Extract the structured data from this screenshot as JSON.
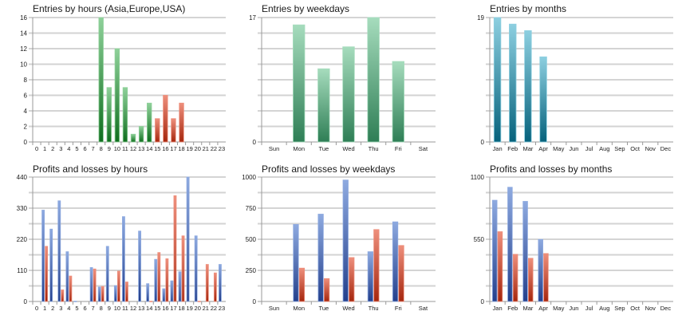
{
  "chart_data": [
    {
      "id": "entries-hours",
      "type": "bar",
      "title": "Entries by hours (Asia,Europe,USA)",
      "xlabel": "",
      "ylabel": "",
      "categories": [
        "0",
        "1",
        "2",
        "3",
        "4",
        "5",
        "6",
        "7",
        "8",
        "9",
        "10",
        "11",
        "12",
        "13",
        "14",
        "15",
        "16",
        "17",
        "18",
        "19",
        "20",
        "21",
        "22",
        "23"
      ],
      "series": [
        {
          "name": "Entries",
          "values": [
            0,
            0,
            0,
            0,
            0,
            0,
            0,
            0,
            16,
            7,
            12,
            7,
            1,
            2,
            5,
            3,
            6,
            3,
            5,
            0,
            0,
            0,
            0,
            0
          ],
          "bar_colors": [
            "green",
            "green",
            "green",
            "green",
            "green",
            "green",
            "green",
            "green",
            "green",
            "green",
            "green",
            "green",
            "green",
            "green",
            "green",
            "red",
            "red",
            "red",
            "red",
            "red",
            "red",
            "red",
            "red",
            "red"
          ]
        }
      ],
      "ylim": [
        0,
        16
      ],
      "yticks": [
        0,
        2,
        4,
        6,
        8,
        10,
        12,
        14,
        16
      ],
      "minor_grid": false,
      "grid": true
    },
    {
      "id": "entries-weekdays",
      "type": "bar",
      "title": "Entries by weekdays",
      "xlabel": "",
      "ylabel": "",
      "categories": [
        "Sun",
        "Mon",
        "Tue",
        "Wed",
        "Thu",
        "Fri",
        "Sat"
      ],
      "series": [
        {
          "name": "Entries",
          "values": [
            0,
            16,
            10,
            13,
            17,
            11,
            0
          ],
          "color": "teal-green"
        }
      ],
      "ylim": [
        0,
        17
      ],
      "yticks": [
        0,
        17
      ],
      "grid": true
    },
    {
      "id": "entries-months",
      "type": "bar",
      "title": "Entries by months",
      "xlabel": "",
      "ylabel": "",
      "categories": [
        "Jan",
        "Feb",
        "Mar",
        "Apr",
        "May",
        "Jun",
        "Jul",
        "Aug",
        "Sep",
        "Oct",
        "Nov",
        "Dec"
      ],
      "series": [
        {
          "name": "Entries",
          "values": [
            19,
            18,
            17,
            13,
            0,
            0,
            0,
            0,
            0,
            0,
            0,
            0
          ],
          "color": "cyan"
        }
      ],
      "ylim": [
        0,
        19
      ],
      "yticks": [
        0,
        19
      ],
      "grid": true
    },
    {
      "id": "pl-hours",
      "type": "bar",
      "title": "Profits and losses by hours",
      "xlabel": "",
      "ylabel": "",
      "categories": [
        "0",
        "1",
        "2",
        "3",
        "4",
        "5",
        "6",
        "7",
        "8",
        "9",
        "10",
        "11",
        "12",
        "13",
        "14",
        "15",
        "16",
        "17",
        "18",
        "19",
        "20",
        "21",
        "22",
        "23"
      ],
      "series": [
        {
          "name": "Profits",
          "color": "blue",
          "values": [
            0,
            323,
            256,
            356,
            176,
            1,
            0,
            120,
            51,
            195,
            56,
            300,
            0,
            249,
            63,
            149,
            45,
            73,
            105,
            440,
            232,
            0,
            0,
            131
          ]
        },
        {
          "name": "Losses",
          "color": "red",
          "values": [
            0,
            195,
            0,
            41,
            90,
            0,
            0,
            115,
            53,
            0,
            107,
            69,
            0,
            0,
            1,
            173,
            151,
            374,
            232,
            0,
            1,
            131,
            101,
            0
          ]
        }
      ],
      "ylim": [
        0,
        440
      ],
      "yticks": [
        0,
        110,
        220,
        330,
        440
      ],
      "grid": true
    },
    {
      "id": "pl-weekdays",
      "type": "bar",
      "title": "Profits and losses by weekdays",
      "xlabel": "",
      "ylabel": "",
      "categories": [
        "Sun",
        "Mon",
        "Tue",
        "Wed",
        "Thu",
        "Fri",
        "Sat"
      ],
      "series": [
        {
          "name": "Profits",
          "color": "blue",
          "values": [
            0,
            619,
            702,
            976,
            400,
            640,
            0
          ]
        },
        {
          "name": "Losses",
          "color": "red",
          "values": [
            0,
            268,
            184,
            353,
            578,
            450,
            0
          ]
        }
      ],
      "ylim": [
        0,
        1000
      ],
      "yticks": [
        0,
        250,
        500,
        750,
        1000
      ],
      "grid": true
    },
    {
      "id": "pl-months",
      "type": "bar",
      "title": "Profits and losses by months",
      "xlabel": "",
      "ylabel": "",
      "categories": [
        "Jan",
        "Feb",
        "Mar",
        "Apr",
        "May",
        "Jun",
        "Jul",
        "Aug",
        "Sep",
        "Oct",
        "Nov",
        "Dec"
      ],
      "series": [
        {
          "name": "Profits",
          "color": "blue",
          "values": [
            895,
            1010,
            885,
            549,
            0,
            0,
            0,
            0,
            0,
            0,
            0,
            0
          ]
        },
        {
          "name": "Losses",
          "color": "red",
          "values": [
            617,
            417,
            382,
            424,
            0,
            0,
            0,
            0,
            0,
            0,
            0,
            0
          ]
        }
      ],
      "ylim": [
        0,
        1100
      ],
      "yticks": [
        0,
        550,
        1100
      ],
      "grid": true
    }
  ],
  "palette": {
    "green": [
      "#8fd19a",
      "#0f6e1e"
    ],
    "red": [
      "#ee8f7c",
      "#a5260d"
    ],
    "teal-green": [
      "#a6dcbd",
      "#2e7e55"
    ],
    "cyan": [
      "#8dcfe0",
      "#06627c"
    ],
    "blue": [
      "#8eaae0",
      "#233f8c"
    ],
    "grid_major": "#a9a9a9",
    "grid_minor": "#d3d3d3",
    "axis": "#999999",
    "text": "#1a1a1a"
  }
}
